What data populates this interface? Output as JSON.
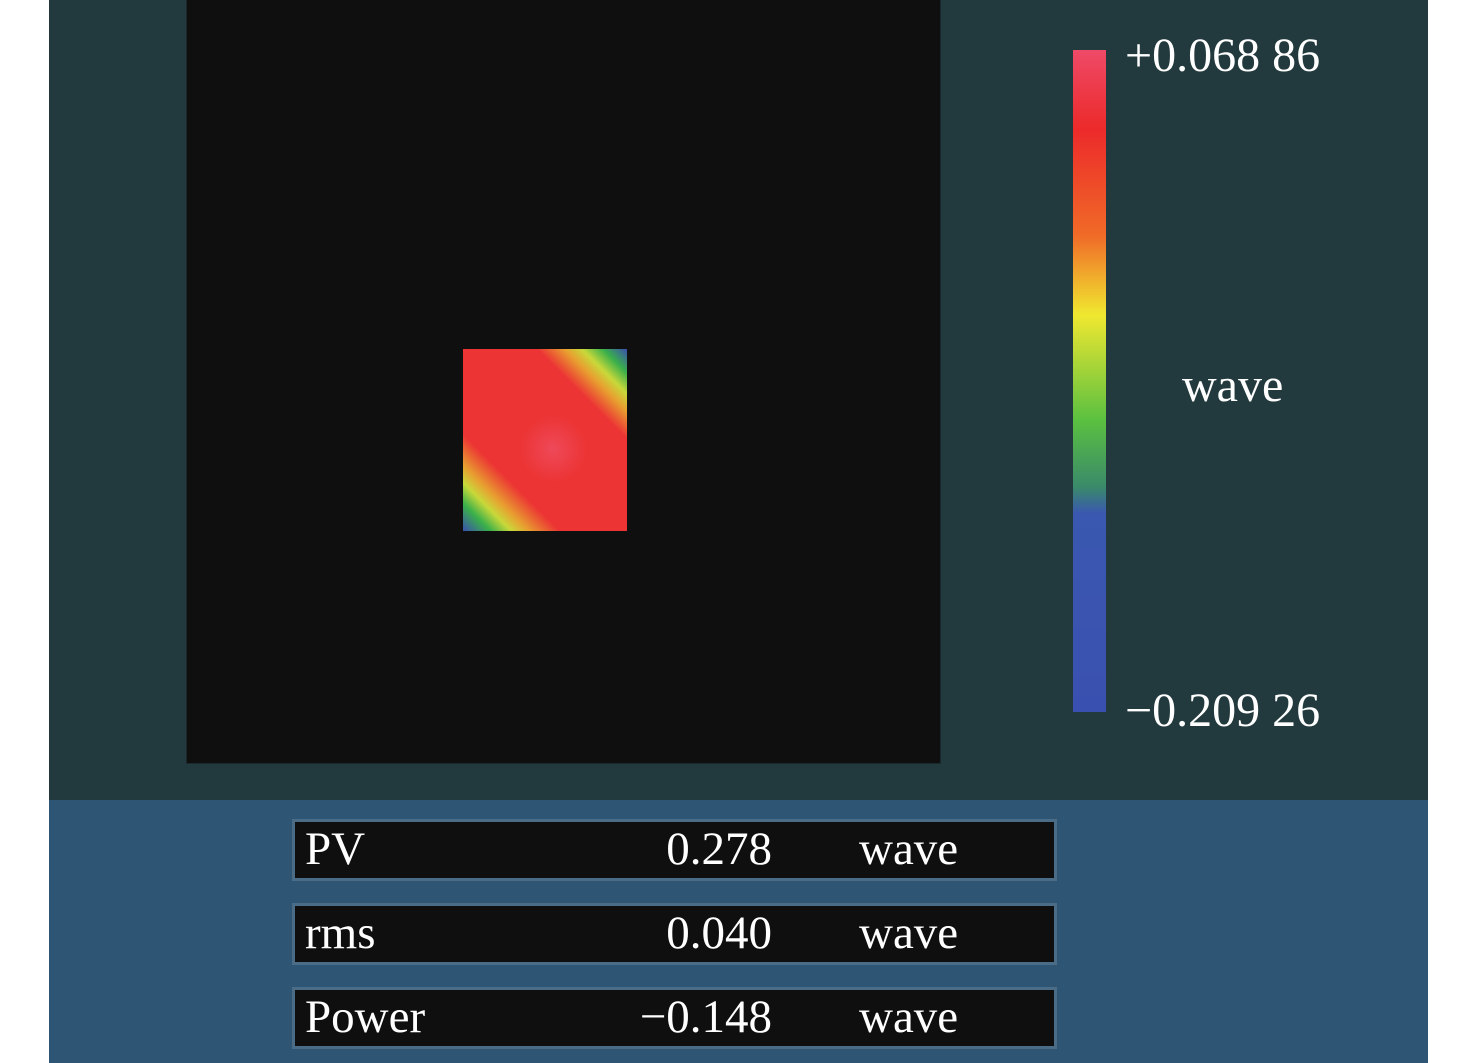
{
  "colorbar": {
    "max_label": "+0.068 86",
    "unit": "wave",
    "min_label": "−0.209 26"
  },
  "measurements": [
    {
      "name": "PV",
      "value": "0.278",
      "unit": "wave"
    },
    {
      "name": "rms",
      "value": "0.040",
      "unit": "wave"
    },
    {
      "name": "Power",
      "value": "−0.148",
      "unit": "wave"
    }
  ]
}
